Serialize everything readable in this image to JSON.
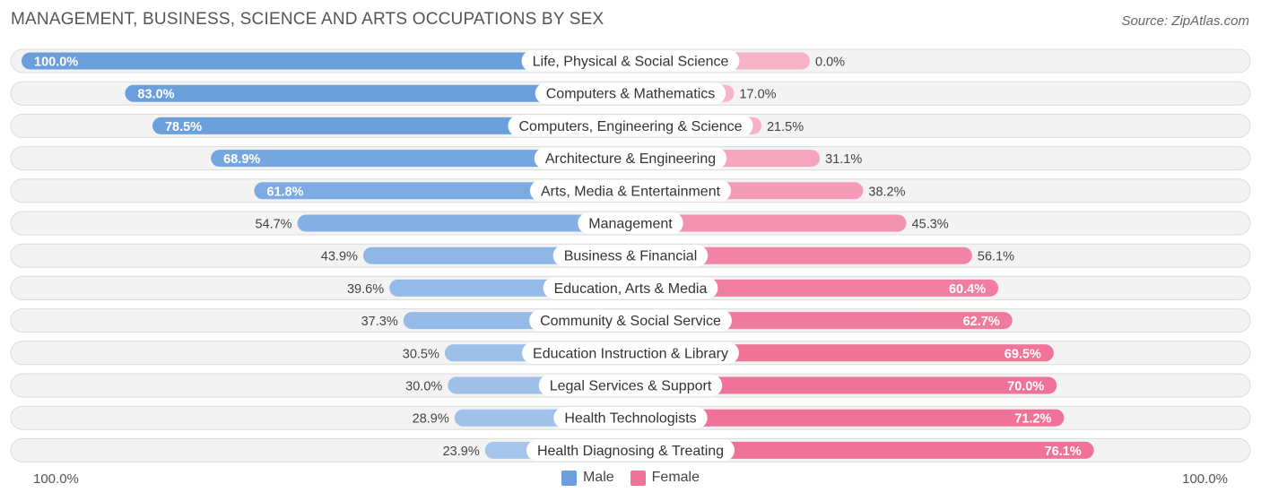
{
  "header": {
    "title": "MANAGEMENT, BUSINESS, SCIENCE AND ARTS OCCUPATIONS BY SEX",
    "source": "Source: ZipAtlas.com"
  },
  "colors": {
    "male_strong": "#6a9fdc",
    "male_light": "#a8c7ec",
    "female_strong": "#f07298",
    "female_light": "#f7b3c8",
    "row_bg": "#f3f3f3",
    "row_border": "#dcdcdc"
  },
  "axis": {
    "left_label": "100.0%",
    "right_label": "100.0%"
  },
  "legend": {
    "male_label": "Male",
    "female_label": "Female"
  },
  "chart_data": {
    "type": "bar",
    "orientation": "horizontal-diverging",
    "title": "MANAGEMENT, BUSINESS, SCIENCE AND ARTS OCCUPATIONS BY SEX",
    "xlim": [
      -100,
      100
    ],
    "categories": [
      "Life, Physical & Social Science",
      "Computers & Mathematics",
      "Computers, Engineering & Science",
      "Architecture & Engineering",
      "Arts, Media & Entertainment",
      "Management",
      "Business & Financial",
      "Education, Arts & Media",
      "Community & Social Service",
      "Education Instruction & Library",
      "Legal Services & Support",
      "Health Technologists",
      "Health Diagnosing & Treating"
    ],
    "series": [
      {
        "name": "Male",
        "values": [
          100.0,
          83.0,
          78.5,
          68.9,
          61.8,
          54.7,
          43.9,
          39.6,
          37.3,
          30.5,
          30.0,
          28.9,
          23.9
        ],
        "labels": [
          "100.0%",
          "83.0%",
          "78.5%",
          "68.9%",
          "61.8%",
          "54.7%",
          "43.9%",
          "39.6%",
          "37.3%",
          "30.5%",
          "30.0%",
          "28.9%",
          "23.9%"
        ]
      },
      {
        "name": "Female",
        "values": [
          0.0,
          17.0,
          21.5,
          31.1,
          38.2,
          45.3,
          56.1,
          60.4,
          62.7,
          69.5,
          70.0,
          71.2,
          76.1
        ],
        "labels": [
          "0.0%",
          "17.0%",
          "21.5%",
          "31.1%",
          "38.2%",
          "45.3%",
          "56.1%",
          "60.4%",
          "62.7%",
          "69.5%",
          "70.0%",
          "71.2%",
          "76.1%"
        ]
      }
    ]
  }
}
